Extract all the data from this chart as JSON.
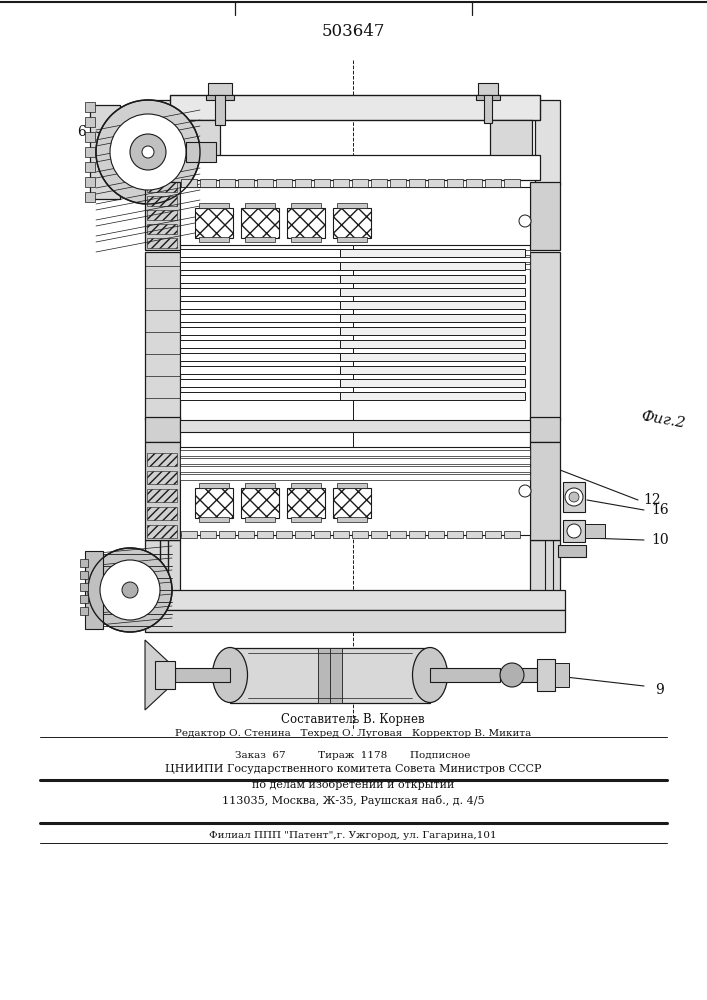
{
  "patent_number": "503647",
  "fig_label": "Фиг.2",
  "label_6": "6",
  "label_12": "12",
  "label_16": "16",
  "label_10": "10",
  "label_9": "9",
  "footer_line1": "Составитель В. Корнев",
  "footer_line2": "Редактор О. Стенина   Техред О. Луговая   Корректор В. Микита",
  "footer_line3": "Заказ  67          Тираж  1178       Подписное",
  "footer_line4": "ЦНИИПИ Государственного комитета Совета Министров СССР",
  "footer_line5": "по делам изобретений и открытий",
  "footer_line6": "113035, Москва, Ж-35, Раушская наб., д. 4/5",
  "footer_line7": "Филиал ППП \"Патент\",г. Ужгород, ул. Гагарина,101",
  "lc": "#1a1a1a"
}
